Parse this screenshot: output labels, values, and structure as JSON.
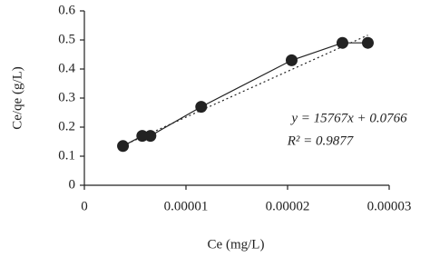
{
  "chart_data": {
    "type": "scatter-line",
    "x_label": "Ce (mg/L)",
    "y_label": "Ce/qe (g/L)",
    "x": [
      3.8e-06,
      5.7e-06,
      6.5e-06,
      1.15e-05,
      2.04e-05,
      2.54e-05,
      2.79e-05
    ],
    "series": [
      {
        "values": [
          0.135,
          0.17,
          0.17,
          0.27,
          0.43,
          0.49,
          0.49
        ],
        "color": "#222222"
      }
    ],
    "trendline": {
      "slope": 15767,
      "intercept": 0.0766,
      "color": "#222222"
    },
    "annotations": [
      "y = 15767x + 0.0766",
      "R² = 0.9877"
    ],
    "xlim": [
      0,
      3e-05
    ],
    "xticks": [
      0,
      1e-05,
      2e-05,
      3e-05
    ],
    "ylim": [
      0,
      0.6
    ],
    "yticks": [
      0,
      0.1,
      0.2,
      0.3,
      0.4,
      0.5,
      0.6
    ]
  }
}
